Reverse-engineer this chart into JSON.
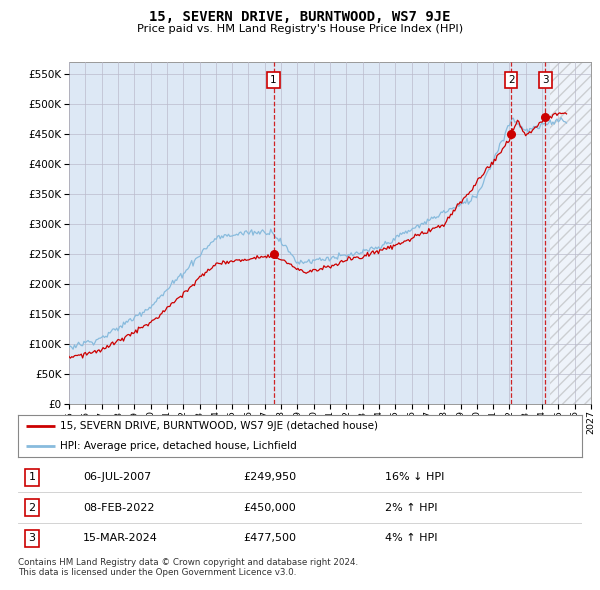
{
  "title": "15, SEVERN DRIVE, BURNTWOOD, WS7 9JE",
  "subtitle": "Price paid vs. HM Land Registry's House Price Index (HPI)",
  "ylim": [
    0,
    570000
  ],
  "yticks": [
    0,
    50000,
    100000,
    150000,
    200000,
    250000,
    300000,
    350000,
    400000,
    450000,
    500000,
    550000
  ],
  "xlim_start": 1995.0,
  "xlim_end": 2027.0,
  "hatch_start": 2024.5,
  "transactions": [
    {
      "date": 2007.54,
      "price": 249950,
      "label": "1"
    },
    {
      "date": 2022.1,
      "price": 450000,
      "label": "2"
    },
    {
      "date": 2024.21,
      "price": 477500,
      "label": "3"
    }
  ],
  "table_rows": [
    {
      "num": "1",
      "date": "06-JUL-2007",
      "price": "£249,950",
      "hpi": "16% ↓ HPI"
    },
    {
      "num": "2",
      "date": "08-FEB-2022",
      "price": "£450,000",
      "hpi": "2% ↑ HPI"
    },
    {
      "num": "3",
      "date": "15-MAR-2024",
      "price": "£477,500",
      "hpi": "4% ↑ HPI"
    }
  ],
  "legend_entries": [
    "15, SEVERN DRIVE, BURNTWOOD, WS7 9JE (detached house)",
    "HPI: Average price, detached house, Lichfield"
  ],
  "property_color": "#cc0000",
  "hpi_color": "#88bbdd",
  "vline_color": "#cc0000",
  "plot_bg": "#dde8f5",
  "grid_color": "#bbbbcc",
  "footer": "Contains HM Land Registry data © Crown copyright and database right 2024.\nThis data is licensed under the Open Government Licence v3.0."
}
